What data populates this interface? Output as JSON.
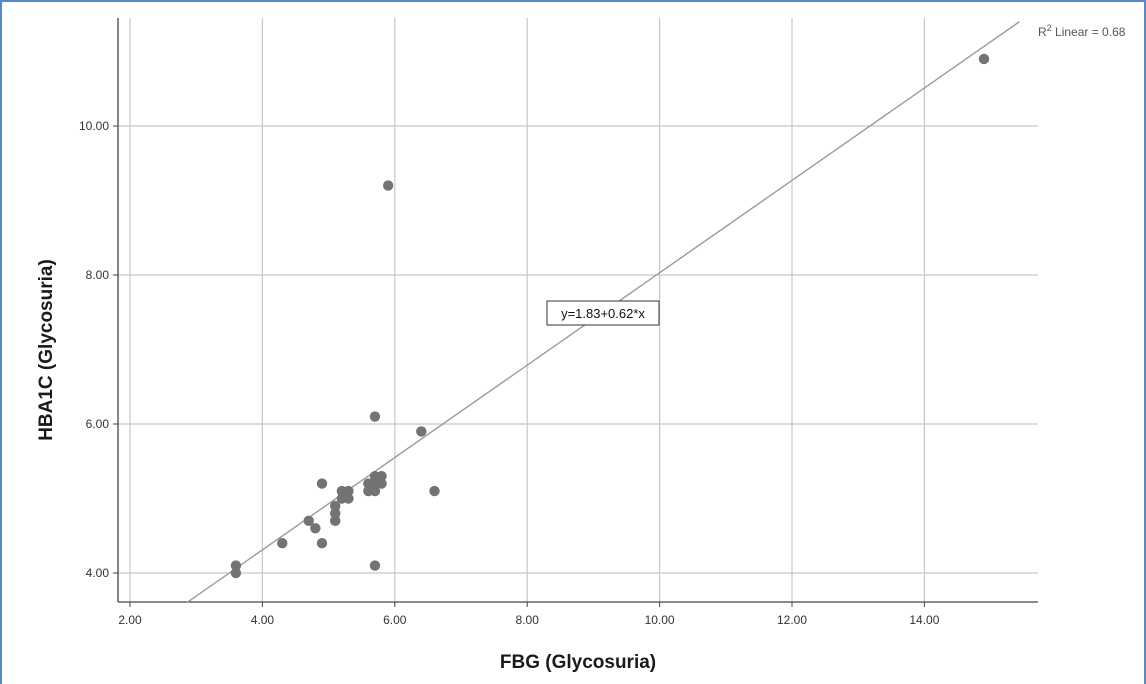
{
  "chart_data": {
    "type": "scatter",
    "title": "",
    "xlabel": "FBG (Glycosuria)",
    "ylabel": "HBA1C (Glycosuria)",
    "xlim": [
      1.8,
      15.5
    ],
    "ylim": [
      3.6,
      11.4
    ],
    "xticks": [
      2,
      4,
      6,
      8,
      10,
      12,
      14
    ],
    "xtick_labels": [
      "2.00",
      "4.00",
      "6.00",
      "8.00",
      "10.00",
      "12.00",
      "14.00"
    ],
    "yticks": [
      4,
      6,
      8,
      10
    ],
    "ytick_labels": [
      "4.00",
      "6.00",
      "8.00",
      "10.00"
    ],
    "grid": true,
    "points": [
      {
        "x": 3.6,
        "y": 4.1
      },
      {
        "x": 3.6,
        "y": 4.0
      },
      {
        "x": 4.3,
        "y": 4.4
      },
      {
        "x": 4.7,
        "y": 4.7
      },
      {
        "x": 4.8,
        "y": 4.6
      },
      {
        "x": 4.9,
        "y": 5.2
      },
      {
        "x": 4.9,
        "y": 4.4
      },
      {
        "x": 5.1,
        "y": 4.9
      },
      {
        "x": 5.1,
        "y": 4.8
      },
      {
        "x": 5.1,
        "y": 4.7
      },
      {
        "x": 5.2,
        "y": 5.1
      },
      {
        "x": 5.2,
        "y": 5.0
      },
      {
        "x": 5.3,
        "y": 5.1
      },
      {
        "x": 5.3,
        "y": 5.0
      },
      {
        "x": 5.6,
        "y": 5.2
      },
      {
        "x": 5.6,
        "y": 5.1
      },
      {
        "x": 5.7,
        "y": 5.3
      },
      {
        "x": 5.7,
        "y": 5.2
      },
      {
        "x": 5.7,
        "y": 5.1
      },
      {
        "x": 5.7,
        "y": 6.1
      },
      {
        "x": 5.7,
        "y": 4.1
      },
      {
        "x": 5.8,
        "y": 5.3
      },
      {
        "x": 5.8,
        "y": 5.2
      },
      {
        "x": 5.9,
        "y": 9.2
      },
      {
        "x": 6.4,
        "y": 5.9
      },
      {
        "x": 6.6,
        "y": 5.1
      },
      {
        "x": 14.9,
        "y": 10.9
      }
    ],
    "fit_line": {
      "intercept": 1.83,
      "slope": 0.62
    },
    "fit_label": "y=1.83+0.62*x",
    "r2_label_prefix": "R",
    "r2_label_sup": "2",
    "r2_label_suffix": " Linear = 0.68",
    "colors": {
      "points": "#737373",
      "grid": "#c8c8c8",
      "fit_line": "#9a9a9a",
      "axis": "#444444",
      "border": "#5b86c9"
    }
  }
}
